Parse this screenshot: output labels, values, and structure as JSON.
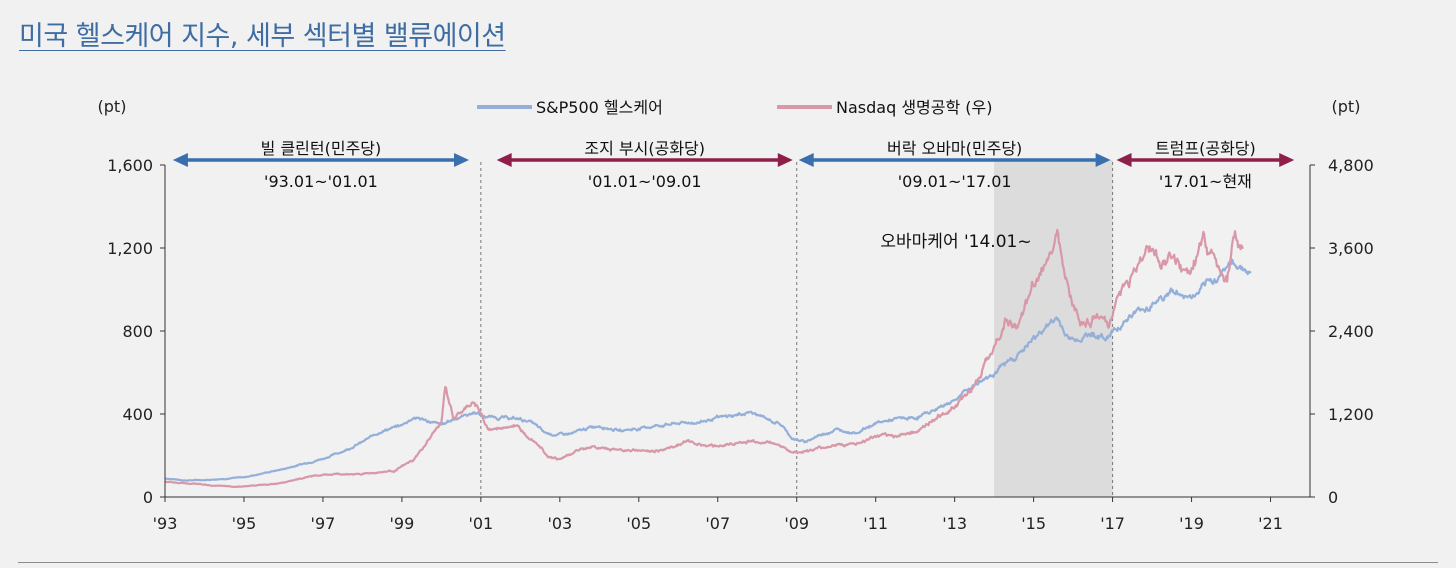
{
  "title": "미국 헬스케어 지수, 세부 섹터별 밸류에이션",
  "chart_data": {
    "type": "line",
    "title": "미국 헬스케어 지수, 세부 섹터별 밸류에이션",
    "left_axis": {
      "unit": "(pt)",
      "range": [
        0,
        1600
      ],
      "ticks": [
        0,
        400,
        800,
        1200,
        1600
      ],
      "tick_labels": [
        "0",
        "400",
        "800",
        "1,200",
        "1,600"
      ]
    },
    "right_axis": {
      "unit": "(pt)",
      "range": [
        0,
        4800
      ],
      "ticks": [
        0,
        1200,
        2400,
        3600,
        4800
      ],
      "tick_labels": [
        "0",
        "1,200",
        "2,400",
        "3,600",
        "4,800"
      ]
    },
    "x_axis": {
      "range": [
        1993,
        2022
      ],
      "ticks": [
        1993,
        1995,
        1997,
        1999,
        2001,
        2003,
        2005,
        2007,
        2009,
        2011,
        2013,
        2015,
        2017,
        2019,
        2021
      ],
      "tick_labels": [
        "'93",
        "'95",
        "'97",
        "'99",
        "'01",
        "'03",
        "'05",
        "'07",
        "'09",
        "'11",
        "'13",
        "'15",
        "'17",
        "'19",
        "'21"
      ]
    },
    "legend_position": "top-center",
    "series": [
      {
        "name": "S&P500 헬스케어",
        "axis": "left",
        "color": "#94b0d8",
        "points": [
          [
            1993.0,
            90
          ],
          [
            1993.5,
            80
          ],
          [
            1994.0,
            82
          ],
          [
            1994.5,
            88
          ],
          [
            1995.0,
            95
          ],
          [
            1995.5,
            115
          ],
          [
            1996.0,
            135
          ],
          [
            1996.5,
            160
          ],
          [
            1997.0,
            185
          ],
          [
            1997.5,
            220
          ],
          [
            1998.0,
            265
          ],
          [
            1998.5,
            320
          ],
          [
            1999.0,
            345
          ],
          [
            1999.3,
            385
          ],
          [
            1999.6,
            370
          ],
          [
            2000.0,
            345
          ],
          [
            2000.3,
            375
          ],
          [
            2000.6,
            395
          ],
          [
            2000.9,
            410
          ],
          [
            2001.0,
            390
          ],
          [
            2001.3,
            385
          ],
          [
            2001.7,
            380
          ],
          [
            2002.0,
            375
          ],
          [
            2002.3,
            360
          ],
          [
            2002.6,
            310
          ],
          [
            2002.9,
            300
          ],
          [
            2003.3,
            305
          ],
          [
            2003.7,
            330
          ],
          [
            2004.0,
            345
          ],
          [
            2004.5,
            320
          ],
          [
            2005.0,
            330
          ],
          [
            2005.5,
            345
          ],
          [
            2006.0,
            355
          ],
          [
            2006.5,
            360
          ],
          [
            2007.0,
            380
          ],
          [
            2007.5,
            395
          ],
          [
            2007.8,
            410
          ],
          [
            2008.2,
            380
          ],
          [
            2008.6,
            350
          ],
          [
            2008.9,
            280
          ],
          [
            2009.2,
            265
          ],
          [
            2009.6,
            300
          ],
          [
            2010.0,
            325
          ],
          [
            2010.5,
            310
          ],
          [
            2011.0,
            355
          ],
          [
            2011.5,
            375
          ],
          [
            2012.0,
            380
          ],
          [
            2012.5,
            420
          ],
          [
            2013.0,
            470
          ],
          [
            2013.5,
            540
          ],
          [
            2014.0,
            600
          ],
          [
            2014.5,
            670
          ],
          [
            2015.0,
            760
          ],
          [
            2015.3,
            820
          ],
          [
            2015.6,
            860
          ],
          [
            2015.9,
            760
          ],
          [
            2016.2,
            770
          ],
          [
            2016.5,
            790
          ],
          [
            2016.8,
            760
          ],
          [
            2017.0,
            800
          ],
          [
            2017.5,
            880
          ],
          [
            2018.0,
            930
          ],
          [
            2018.5,
            990
          ],
          [
            2019.0,
            960
          ],
          [
            2019.3,
            1000
          ],
          [
            2019.6,
            1050
          ],
          [
            2019.9,
            1120
          ],
          [
            2020.2,
            1120
          ],
          [
            2020.5,
            1080
          ]
        ]
      },
      {
        "name": "Nasdaq 생명공학 (우)",
        "axis": "right",
        "color": "#d898a8",
        "points": [
          [
            1993.0,
            220
          ],
          [
            1993.8,
            190
          ],
          [
            1994.3,
            160
          ],
          [
            1994.8,
            150
          ],
          [
            1995.3,
            165
          ],
          [
            1995.8,
            190
          ],
          [
            1996.3,
            255
          ],
          [
            1996.8,
            310
          ],
          [
            1997.3,
            330
          ],
          [
            1997.8,
            330
          ],
          [
            1998.3,
            350
          ],
          [
            1998.8,
            380
          ],
          [
            1999.3,
            530
          ],
          [
            1999.7,
            840
          ],
          [
            2000.0,
            1080
          ],
          [
            2000.1,
            1580
          ],
          [
            2000.3,
            1150
          ],
          [
            2000.6,
            1250
          ],
          [
            2000.8,
            1380
          ],
          [
            2001.0,
            1200
          ],
          [
            2001.2,
            980
          ],
          [
            2001.5,
            980
          ],
          [
            2001.8,
            1050
          ],
          [
            2002.1,
            930
          ],
          [
            2002.4,
            820
          ],
          [
            2002.7,
            600
          ],
          [
            2003.0,
            540
          ],
          [
            2003.4,
            660
          ],
          [
            2003.8,
            730
          ],
          [
            2004.1,
            700
          ],
          [
            2004.5,
            680
          ],
          [
            2004.9,
            680
          ],
          [
            2005.2,
            660
          ],
          [
            2005.6,
            680
          ],
          [
            2005.9,
            740
          ],
          [
            2006.2,
            800
          ],
          [
            2006.6,
            760
          ],
          [
            2007.0,
            740
          ],
          [
            2007.4,
            770
          ],
          [
            2007.8,
            800
          ],
          [
            2008.2,
            800
          ],
          [
            2008.6,
            750
          ],
          [
            2008.9,
            640
          ],
          [
            2009.2,
            660
          ],
          [
            2009.6,
            700
          ],
          [
            2010.0,
            760
          ],
          [
            2010.5,
            760
          ],
          [
            2011.0,
            870
          ],
          [
            2011.5,
            880
          ],
          [
            2012.0,
            950
          ],
          [
            2012.5,
            1110
          ],
          [
            2013.0,
            1320
          ],
          [
            2013.4,
            1560
          ],
          [
            2013.8,
            1940
          ],
          [
            2014.1,
            2300
          ],
          [
            2014.3,
            2580
          ],
          [
            2014.6,
            2420
          ],
          [
            2015.0,
            3050
          ],
          [
            2015.3,
            3370
          ],
          [
            2015.6,
            3900
          ],
          [
            2015.9,
            3050
          ],
          [
            2016.2,
            2450
          ],
          [
            2016.6,
            2650
          ],
          [
            2016.9,
            2450
          ],
          [
            2017.1,
            2900
          ],
          [
            2017.5,
            3200
          ],
          [
            2017.9,
            3600
          ],
          [
            2018.2,
            3450
          ],
          [
            2018.5,
            3450
          ],
          [
            2018.8,
            3200
          ],
          [
            2019.0,
            3300
          ],
          [
            2019.3,
            3700
          ],
          [
            2019.6,
            3400
          ],
          [
            2019.9,
            3200
          ],
          [
            2020.1,
            3750
          ],
          [
            2020.3,
            3550
          ]
        ]
      }
    ],
    "annotations": [
      {
        "label": "빌 클린턴(민주당)",
        "period": "'93.01~'01.01",
        "from": 1993.2,
        "to": 2000.7,
        "arrow_color": "#3a6fae"
      },
      {
        "label": "조지 부시(공화당)",
        "period": "'01.01~'09.01",
        "from": 2001.4,
        "to": 2008.9,
        "arrow_color": "#8d1f4a"
      },
      {
        "label": "버락 오바마(민주당)",
        "period": "'09.01~'17.01",
        "from": 2009.05,
        "to": 2016.95,
        "arrow_color": "#3a6fae"
      },
      {
        "label": "트럼프(공화당)",
        "period": "'17.01~현재",
        "from": 2017.1,
        "to": 2021.6,
        "arrow_color": "#8d1f4a"
      }
    ],
    "dividers": [
      2001.0,
      2009.0,
      2017.0
    ],
    "shaded_region": {
      "from": 2014.0,
      "to": 2017.0,
      "color": "#dcdcdc"
    },
    "obamacare_note": "오바마케어 '14.01~"
  }
}
